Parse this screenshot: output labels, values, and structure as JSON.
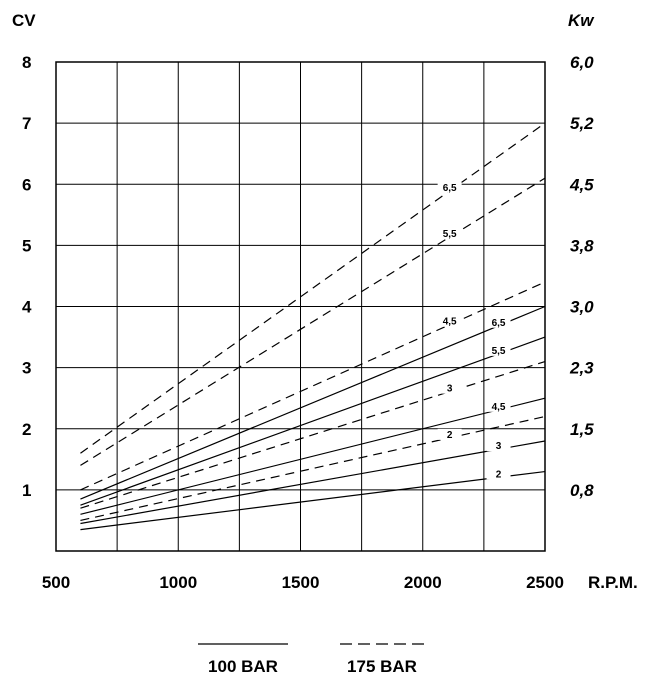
{
  "chart_data": {
    "type": "line",
    "ylabel_left": "CV",
    "ylabel_right": "Kw",
    "xlabel": "R.P.M.",
    "x_ticks": [
      "500",
      "1000",
      "1500",
      "2000",
      "2500"
    ],
    "y_ticks_left": [
      "1",
      "2",
      "3",
      "4",
      "5",
      "6",
      "7",
      "8"
    ],
    "y_ticks_right": [
      "0,8",
      "1,5",
      "2,3",
      "3,0",
      "3,8",
      "4,5",
      "5,2",
      "6,0"
    ],
    "xlim": [
      500,
      2500
    ],
    "ylim": [
      0,
      8
    ],
    "grid": true,
    "legend": [
      {
        "name": "100 BAR",
        "style": "solid"
      },
      {
        "name": "175 BAR",
        "style": "dashed"
      }
    ],
    "series": [
      {
        "label": "2",
        "pressure": "100 BAR",
        "style": "solid",
        "x": [
          600,
          2500
        ],
        "y": [
          0.35,
          1.3
        ]
      },
      {
        "label": "3",
        "pressure": "100 BAR",
        "style": "solid",
        "x": [
          600,
          2500
        ],
        "y": [
          0.45,
          1.8
        ]
      },
      {
        "label": "4,5",
        "pressure": "100 BAR",
        "style": "solid",
        "x": [
          600,
          2500
        ],
        "y": [
          0.6,
          2.5
        ]
      },
      {
        "label": "5,5",
        "pressure": "100 BAR",
        "style": "solid",
        "x": [
          600,
          2500
        ],
        "y": [
          0.75,
          3.5
        ]
      },
      {
        "label": "6,5",
        "pressure": "100 BAR",
        "style": "solid",
        "x": [
          600,
          2500
        ],
        "y": [
          0.85,
          4.0
        ]
      },
      {
        "label": "2",
        "pressure": "175 BAR",
        "style": "dashed",
        "x": [
          600,
          2500
        ],
        "y": [
          0.5,
          2.2
        ]
      },
      {
        "label": "3",
        "pressure": "175 BAR",
        "style": "dashed",
        "x": [
          600,
          2500
        ],
        "y": [
          0.7,
          3.1
        ]
      },
      {
        "label": "4,5",
        "pressure": "175 BAR",
        "style": "dashed",
        "x": [
          600,
          2500
        ],
        "y": [
          1.0,
          4.4
        ]
      },
      {
        "label": "5,5",
        "pressure": "175 BAR",
        "style": "dashed",
        "x": [
          600,
          2500
        ],
        "y": [
          1.4,
          6.1
        ]
      },
      {
        "label": "6,5",
        "pressure": "175 BAR",
        "style": "dashed",
        "x": [
          600,
          2500
        ],
        "y": [
          1.6,
          7.0
        ]
      }
    ]
  }
}
